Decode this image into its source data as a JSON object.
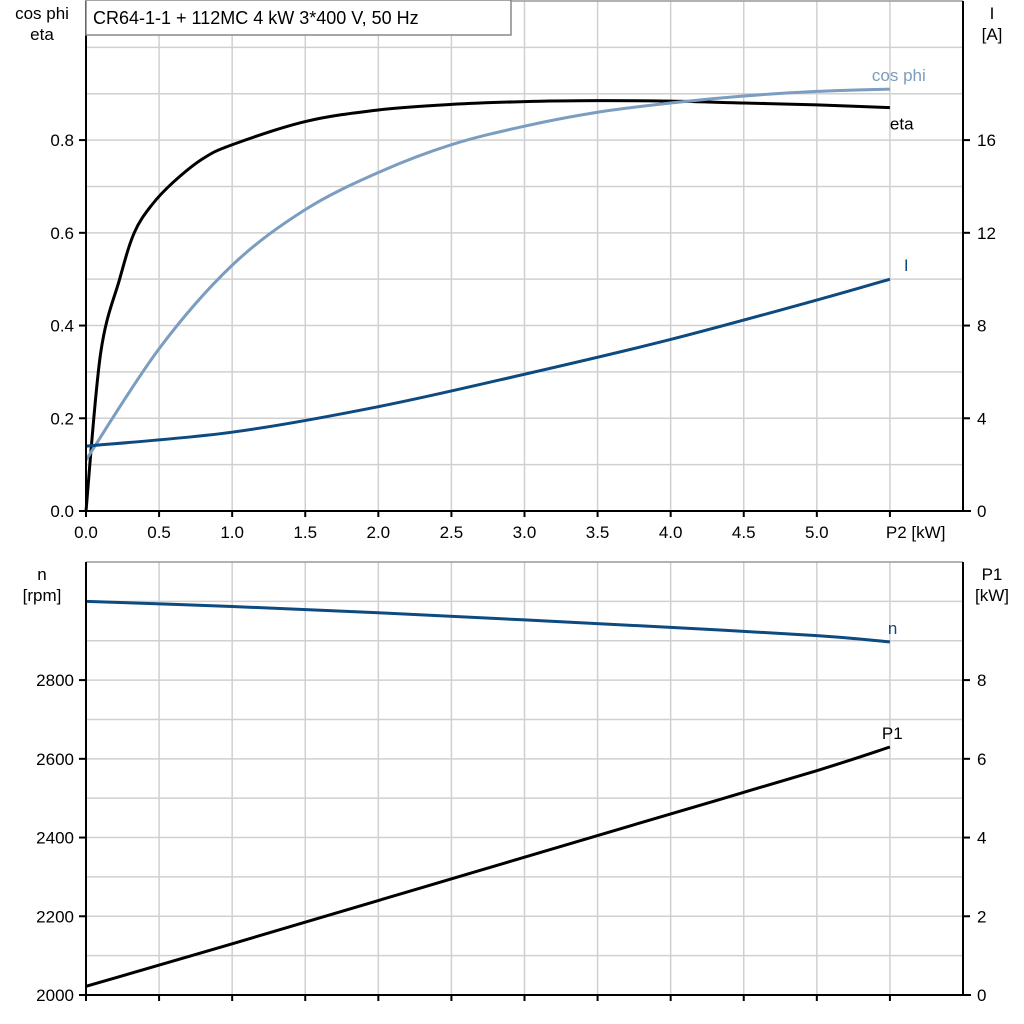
{
  "title": "CR64-1-1 + 112MC   4 kW   3*400 V, 50 Hz",
  "chart_data": [
    {
      "type": "line",
      "x_label": "P2 [kW]",
      "xlim": [
        0,
        6
      ],
      "x_ticks": [
        "0.0",
        "0.5",
        "1.0",
        "1.5",
        "2.0",
        "2.5",
        "3.0",
        "3.5",
        "4.0",
        "4.5",
        "5.0"
      ],
      "y_left_label": [
        "cos phi",
        "eta"
      ],
      "y_left_lim": [
        0,
        1.1
      ],
      "y_left_ticks": [
        "0.0",
        "0.2",
        "0.4",
        "0.6",
        "0.8"
      ],
      "y_right_label": [
        "I",
        "[A]"
      ],
      "y_right_lim": [
        0,
        22
      ],
      "y_right_ticks": [
        "0",
        "4",
        "8",
        "12",
        "16"
      ],
      "grid": true,
      "series": [
        {
          "name": "eta",
          "axis": "left",
          "color": "#000000",
          "x": [
            0,
            0.1,
            0.23,
            0.33,
            0.45,
            0.6,
            0.8,
            1.0,
            1.5,
            2.0,
            2.5,
            3.0,
            3.5,
            4.0,
            4.5,
            5.0,
            5.5
          ],
          "y": [
            0,
            0.34,
            0.5,
            0.6,
            0.66,
            0.71,
            0.76,
            0.79,
            0.84,
            0.865,
            0.877,
            0.883,
            0.885,
            0.884,
            0.88,
            0.876,
            0.87
          ]
        },
        {
          "name": "cos phi",
          "axis": "left",
          "color": "#7b9dbf",
          "x": [
            0,
            0.5,
            1.0,
            1.5,
            2.0,
            2.5,
            3.0,
            3.5,
            4.0,
            4.5,
            5.0,
            5.5
          ],
          "y": [
            0.11,
            0.35,
            0.53,
            0.65,
            0.73,
            0.79,
            0.83,
            0.86,
            0.88,
            0.895,
            0.905,
            0.91
          ]
        },
        {
          "name": "I",
          "axis": "right",
          "color": "#0d4a80",
          "x": [
            0,
            1.0,
            2.0,
            3.0,
            4.0,
            5.0,
            5.5
          ],
          "y": [
            2.8,
            3.4,
            4.5,
            5.9,
            7.4,
            9.1,
            10.0
          ]
        }
      ]
    },
    {
      "type": "line",
      "xlim": [
        0,
        6
      ],
      "y_left_label": [
        "n",
        "[rpm]"
      ],
      "y_left_lim": [
        2000,
        3100
      ],
      "y_left_ticks": [
        "2000",
        "2200",
        "2400",
        "2600",
        "2800"
      ],
      "y_right_label": [
        "P1",
        "[kW]"
      ],
      "y_right_lim": [
        0,
        11
      ],
      "y_right_ticks": [
        "0",
        "2",
        "4",
        "6",
        "8"
      ],
      "grid": true,
      "series": [
        {
          "name": "n",
          "axis": "left",
          "color": "#0d4a80",
          "x": [
            0,
            1.0,
            2.0,
            3.0,
            4.0,
            5.0,
            5.5
          ],
          "y": [
            3000,
            2987,
            2971,
            2953,
            2934,
            2913,
            2897
          ]
        },
        {
          "name": "P1",
          "axis": "right",
          "color": "#000000",
          "x": [
            0,
            1.0,
            2.0,
            3.0,
            4.0,
            5.0,
            5.5
          ],
          "y": [
            0.22,
            1.3,
            2.4,
            3.5,
            4.6,
            5.7,
            6.3
          ]
        }
      ]
    }
  ]
}
